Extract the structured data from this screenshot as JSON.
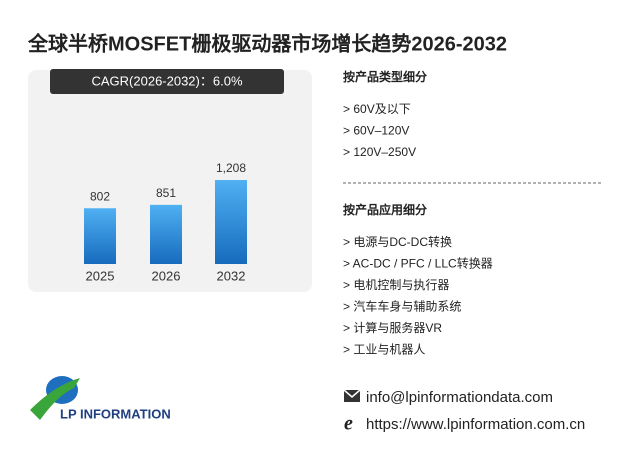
{
  "title": "全球半桥MOSFET栅极驱动器市场增长趋势2026-2032",
  "chart_data": {
    "type": "bar",
    "banner": "CAGR(2026-2032)：6.0%",
    "categories": [
      "2025",
      "2026",
      "2032"
    ],
    "values": [
      802,
      851,
      1208
    ],
    "value_labels": [
      "802",
      "851",
      "1,208"
    ],
    "color": "#2b86d8"
  },
  "product_section": {
    "heading": "按产品类型细分",
    "items": [
      "> 60V及以下",
      "> 60V–120V",
      "> 120V–250V"
    ]
  },
  "application_section": {
    "heading": "按产品应用细分",
    "items": [
      "> 电源与DC-DC转换",
      "> AC-DC / PFC / LLC转换器",
      "> 电机控制与执行器",
      "> 汽车车身与辅助系统",
      "> 计算与服务器VR",
      "> 工业与机器人"
    ]
  },
  "contact": {
    "email": "info@lpinformationdata.com",
    "website": "https://www.lpinformation.com.cn"
  },
  "logo": "LP INFORMATION"
}
